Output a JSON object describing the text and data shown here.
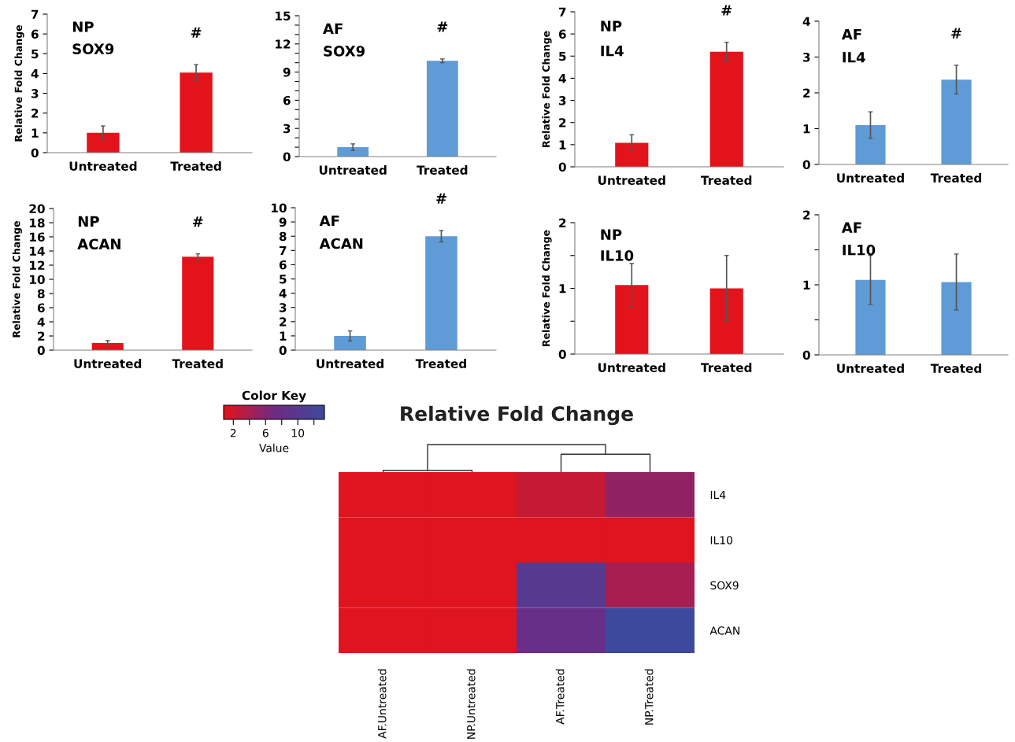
{
  "chart_data": [
    {
      "type": "bar",
      "categories": [
        "Untreated",
        "Treated"
      ],
      "values": [
        1.0,
        4.05
      ],
      "errors": [
        0.35,
        0.4
      ],
      "color": "#e3131b",
      "ylabel": "Relative Fold Change",
      "ylim": [
        0,
        7
      ],
      "yticks": [
        0,
        1,
        2,
        3,
        4,
        5,
        6,
        7
      ],
      "annotations": [
        "NP",
        "SOX9",
        "#"
      ]
    },
    {
      "type": "bar",
      "categories": [
        "Untreated",
        "Treated"
      ],
      "values": [
        1.0,
        10.2
      ],
      "errors": [
        0.35,
        0.2
      ],
      "color": "#5f9bd6",
      "ylim": [
        0,
        15
      ],
      "yticks": [
        0,
        {
          "value": 1,
          "label": null
        },
        {
          "value": 2,
          "label": null
        },
        3,
        {
          "value": 4,
          "label": null
        },
        {
          "value": 5,
          "label": null
        },
        6,
        {
          "value": 7,
          "label": null
        },
        {
          "value": 8,
          "label": null
        },
        9,
        {
          "value": 10,
          "label": null
        },
        {
          "value": 11,
          "label": null
        },
        12,
        {
          "value": 13,
          "label": null
        },
        {
          "value": 14,
          "label": null
        },
        15
      ],
      "annotations": [
        "AF",
        "SOX9",
        "#"
      ]
    },
    {
      "type": "bar",
      "categories": [
        "Untreated",
        "Treated"
      ],
      "values": [
        1.08,
        5.2
      ],
      "errors": [
        0.37,
        0.42
      ],
      "color": "#e3131b",
      "ylabel": "Relative Fold Change",
      "ylim": [
        0,
        7
      ],
      "yticks": [
        0,
        1,
        2,
        3,
        4,
        5,
        6,
        7
      ],
      "annotations": [
        "NP",
        "IL4",
        "#"
      ]
    },
    {
      "type": "bar",
      "categories": [
        "Untreated",
        "Treated"
      ],
      "values": [
        1.1,
        2.37
      ],
      "errors": [
        0.37,
        0.4
      ],
      "color": "#5f9bd6",
      "ylim": [
        0,
        4
      ],
      "yticks": [
        0,
        1,
        2,
        3,
        4
      ],
      "annotations": [
        "AF",
        "IL4",
        "#"
      ]
    },
    {
      "type": "bar",
      "categories": [
        "Untreated",
        "Treated"
      ],
      "values": [
        1.0,
        13.2
      ],
      "errors": [
        0.35,
        0.4
      ],
      "color": "#e3131b",
      "ylabel": "Relative Fold Change",
      "ylim": [
        0,
        20
      ],
      "yticks": [
        0,
        2,
        4,
        6,
        8,
        10,
        12,
        14,
        16,
        18,
        20
      ],
      "annotations": [
        "NP",
        "ACAN",
        "#"
      ]
    },
    {
      "type": "bar",
      "categories": [
        "Untreated",
        "Treated"
      ],
      "values": [
        1.0,
        8.0
      ],
      "errors": [
        0.35,
        0.4
      ],
      "color": "#5f9bd6",
      "ylim": [
        0,
        10
      ],
      "yticks": [
        0,
        1,
        2,
        3,
        4,
        5,
        6,
        7,
        8,
        9,
        10
      ],
      "annotations": [
        "AF",
        "ACAN",
        "#"
      ]
    },
    {
      "type": "bar",
      "categories": [
        "Untreated",
        "Treated"
      ],
      "values": [
        1.05,
        1.0
      ],
      "errors": [
        0.33,
        0.5
      ],
      "color": "#e3131b",
      "ylabel": "Relative Fold Change",
      "ylim": [
        0,
        2
      ],
      "yticks": [
        0,
        {
          "value": 0.5,
          "label": null
        },
        1,
        {
          "value": 1.5,
          "label": null
        },
        2
      ],
      "annotations": [
        "NP",
        "IL10"
      ]
    },
    {
      "type": "bar",
      "categories": [
        "Untreated",
        "Treated"
      ],
      "values": [
        1.07,
        1.04
      ],
      "errors": [
        0.35,
        0.4
      ],
      "color": "#5f9bd6",
      "ylim": [
        0,
        2
      ],
      "yticks": [
        0,
        {
          "value": 0.5,
          "label": null
        },
        1,
        {
          "value": 1.5,
          "label": null
        },
        2
      ],
      "annotations": [
        "AF",
        "IL10"
      ]
    },
    {
      "type": "heatmap",
      "title": "Relative Fold Change",
      "categories": [
        "AF.Untreated",
        "NP.Untreated",
        "AF.Treated",
        "NP.Treated"
      ],
      "y_categories": [
        "IL4",
        "IL10",
        "SOX9",
        "ACAN"
      ],
      "cells": [
        [
          1.1,
          1.08,
          2.37,
          5.2
        ],
        [
          1.07,
          1.05,
          1.04,
          1.0
        ],
        [
          1.05,
          1.0,
          10.2,
          4.05
        ],
        [
          1.0,
          1.05,
          8.0,
          13.2
        ]
      ],
      "clim": [
        0.8,
        13.3
      ],
      "cticks": [
        2,
        {
          "value": 4,
          "label": null
        },
        6,
        {
          "value": 8,
          "label": null
        },
        10,
        {
          "value": 12,
          "label": null
        }
      ],
      "clabel": "Value",
      "legend_title": "Color Key"
    }
  ]
}
